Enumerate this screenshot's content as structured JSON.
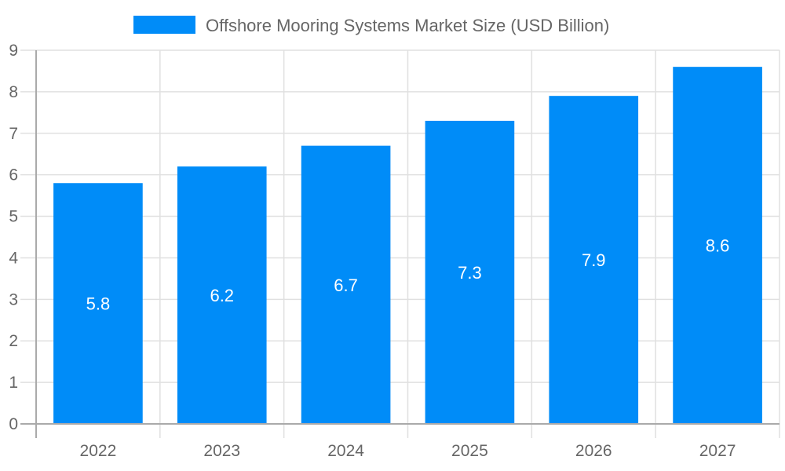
{
  "chart_data": {
    "type": "bar",
    "categories": [
      "2022",
      "2023",
      "2024",
      "2025",
      "2026",
      "2027"
    ],
    "series": [
      {
        "name": "Offshore Mooring Systems Market Size (USD Billion)",
        "values": [
          5.8,
          6.2,
          6.7,
          7.3,
          7.9,
          8.6
        ],
        "color": "#008cf8"
      }
    ],
    "yticks": [
      "0",
      "1",
      "2",
      "3",
      "4",
      "5",
      "6",
      "7",
      "8",
      "9"
    ],
    "ylim": [
      0,
      9
    ],
    "grid": true,
    "legend_position": "top",
    "data_labels": true
  }
}
